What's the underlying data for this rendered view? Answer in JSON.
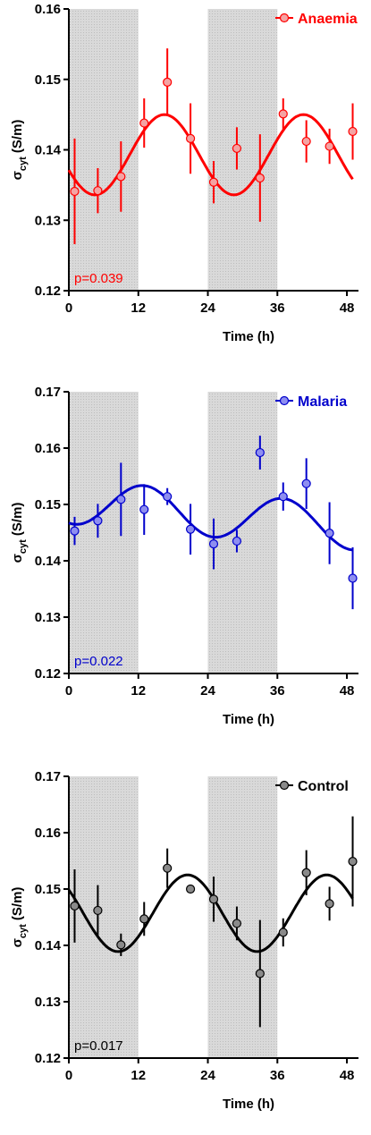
{
  "chart_data": [
    {
      "type": "scatter",
      "series": [
        {
          "name": "Anaemia",
          "color": "#ff0000",
          "fill": "#f4a3a3",
          "x": [
            1,
            5,
            9,
            13,
            17,
            21,
            25,
            29,
            33,
            37,
            41,
            45,
            49
          ],
          "y": [
            0.1341,
            0.1342,
            0.1362,
            0.1438,
            0.1496,
            0.1416,
            0.1354,
            0.1402,
            0.136,
            0.1451,
            0.1412,
            0.1405,
            0.1426
          ],
          "err": [
            0.0075,
            0.0032,
            0.005,
            0.0035,
            0.0048,
            0.005,
            0.003,
            0.003,
            0.0062,
            0.0022,
            0.003,
            0.0025,
            0.004
          ],
          "fit_mesor": 0.1393,
          "fit_amp": 0.0057,
          "fit_peak": 16.5
        }
      ],
      "xlabel": "Time (h)",
      "ylabel_main": "σ",
      "ylabel_sub": "cyt",
      "ylabel_unit": " (S/m)",
      "xticks": [
        "0",
        "12",
        "24",
        "36",
        "48"
      ],
      "yticks": [
        "0.12",
        "0.13",
        "0.14",
        "0.15",
        "0.16"
      ],
      "xlim": [
        0,
        50
      ],
      "ylim": [
        0.12,
        0.16
      ],
      "dark_periods": [
        [
          0,
          12
        ],
        [
          24,
          36
        ]
      ],
      "pvalue": "p=0.039",
      "legend_position": "top-right"
    },
    {
      "type": "scatter",
      "series": [
        {
          "name": "Malaria",
          "color": "#0000cc",
          "fill": "#8e8ef0",
          "x": [
            1,
            5,
            9,
            13,
            17,
            21,
            25,
            29,
            33,
            37,
            41,
            45,
            49
          ],
          "y": [
            0.1453,
            0.1471,
            0.1509,
            0.1491,
            0.1514,
            0.1456,
            0.143,
            0.1435,
            0.1592,
            0.1514,
            0.1537,
            0.1449,
            0.1369
          ],
          "err": [
            0.0025,
            0.003,
            0.0065,
            0.0045,
            0.0015,
            0.0045,
            0.0045,
            0.002,
            0.003,
            0.0025,
            0.0045,
            0.0055,
            0.0055
          ],
          "fit_mesor": 0.1482,
          "fit_amp": 0.004,
          "fit_peak": 37,
          "fit_trend": -9.5e-05,
          "fit_trend_center": 25
        }
      ],
      "xlabel": "Time (h)",
      "ylabel_main": "σ",
      "ylabel_sub": "cyt",
      "ylabel_unit": " (S/m)",
      "xticks": [
        "0",
        "12",
        "24",
        "36",
        "48"
      ],
      "yticks": [
        "0.12",
        "0.13",
        "0.14",
        "0.15",
        "0.16",
        "0.17"
      ],
      "xlim": [
        0,
        50
      ],
      "ylim": [
        0.12,
        0.17
      ],
      "dark_periods": [
        [
          0,
          12
        ],
        [
          24,
          36
        ]
      ],
      "pvalue": "p=0.022",
      "legend_position": "top-right"
    },
    {
      "type": "scatter",
      "series": [
        {
          "name": "Control",
          "color": "#000000",
          "fill": "#8a8a8a",
          "x": [
            1,
            5,
            9,
            13,
            17,
            21,
            25,
            29,
            33,
            37,
            41,
            45,
            49
          ],
          "y": [
            0.147,
            0.1462,
            0.1401,
            0.1447,
            0.1537,
            0.15,
            0.1482,
            0.1439,
            0.135,
            0.1423,
            0.1529,
            0.1474,
            0.1549
          ],
          "err": [
            0.0065,
            0.0045,
            0.002,
            0.003,
            0.0035,
            0.0005,
            0.004,
            0.003,
            0.0095,
            0.0025,
            0.004,
            0.003,
            0.008
          ],
          "fit_mesor": 0.1457,
          "fit_amp": 0.0068,
          "fit_peak": 20.5
        }
      ],
      "xlabel": "Time (h)",
      "ylabel_main": "σ",
      "ylabel_sub": "cyt",
      "ylabel_unit": " (S/m)",
      "xticks": [
        "0",
        "12",
        "24",
        "36",
        "48"
      ],
      "yticks": [
        "0.12",
        "0.13",
        "0.14",
        "0.15",
        "0.16",
        "0.17"
      ],
      "xlim": [
        0,
        50
      ],
      "ylim": [
        0.12,
        0.17
      ],
      "dark_periods": [
        [
          0,
          12
        ],
        [
          24,
          36
        ]
      ],
      "pvalue": "p=0.017",
      "legend_position": "top-right"
    }
  ]
}
